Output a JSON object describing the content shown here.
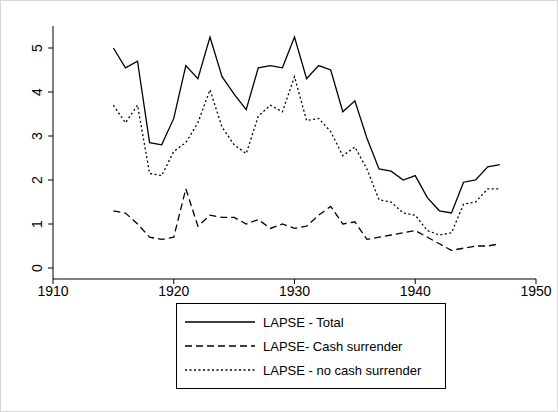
{
  "chart_data": {
    "type": "line",
    "x": [
      1915,
      1916,
      1917,
      1918,
      1919,
      1920,
      1921,
      1922,
      1923,
      1924,
      1925,
      1926,
      1927,
      1928,
      1929,
      1930,
      1931,
      1932,
      1933,
      1934,
      1935,
      1936,
      1937,
      1938,
      1939,
      1940,
      1941,
      1942,
      1943,
      1944,
      1945,
      1946,
      1947
    ],
    "series": [
      {
        "name": "LAPSE - Total",
        "color": "#000000",
        "line_style": "solid",
        "values": [
          5.0,
          4.55,
          4.7,
          2.85,
          2.8,
          3.4,
          4.6,
          4.3,
          5.25,
          4.35,
          3.95,
          3.6,
          4.55,
          4.6,
          4.55,
          5.25,
          4.3,
          4.6,
          4.5,
          3.55,
          3.8,
          2.95,
          2.25,
          2.2,
          2.0,
          2.1,
          1.6,
          1.3,
          1.25,
          1.95,
          2.0,
          2.3,
          2.35
        ]
      },
      {
        "name": "LAPSE- Cash surrender",
        "color": "#000000",
        "line_style": "dashed",
        "values": [
          1.3,
          1.25,
          1.0,
          0.7,
          0.65,
          0.7,
          1.8,
          0.95,
          1.2,
          1.15,
          1.15,
          1.0,
          1.1,
          0.9,
          1.0,
          0.9,
          0.95,
          1.2,
          1.4,
          1.0,
          1.05,
          0.65,
          0.7,
          0.75,
          0.8,
          0.85,
          0.7,
          0.55,
          0.4,
          0.45,
          0.5,
          0.5,
          0.55
        ]
      },
      {
        "name": "LAPSE - no cash surrender",
        "color": "#000000",
        "line_style": "dotted",
        "values": [
          3.7,
          3.3,
          3.7,
          2.15,
          2.1,
          2.65,
          2.85,
          3.3,
          4.05,
          3.2,
          2.8,
          2.6,
          3.45,
          3.7,
          3.55,
          4.35,
          3.35,
          3.4,
          3.1,
          2.55,
          2.75,
          2.25,
          1.55,
          1.5,
          1.25,
          1.2,
          0.85,
          0.75,
          0.8,
          1.45,
          1.5,
          1.8,
          1.8
        ]
      }
    ],
    "xlim": [
      1910,
      1950
    ],
    "xticks": [
      1910,
      1920,
      1930,
      1940,
      1950
    ],
    "ylim": [
      -0.25,
      5.5
    ],
    "yticks": [
      0,
      1,
      2,
      3,
      4,
      5
    ],
    "grid": false,
    "legend": "bottom"
  }
}
